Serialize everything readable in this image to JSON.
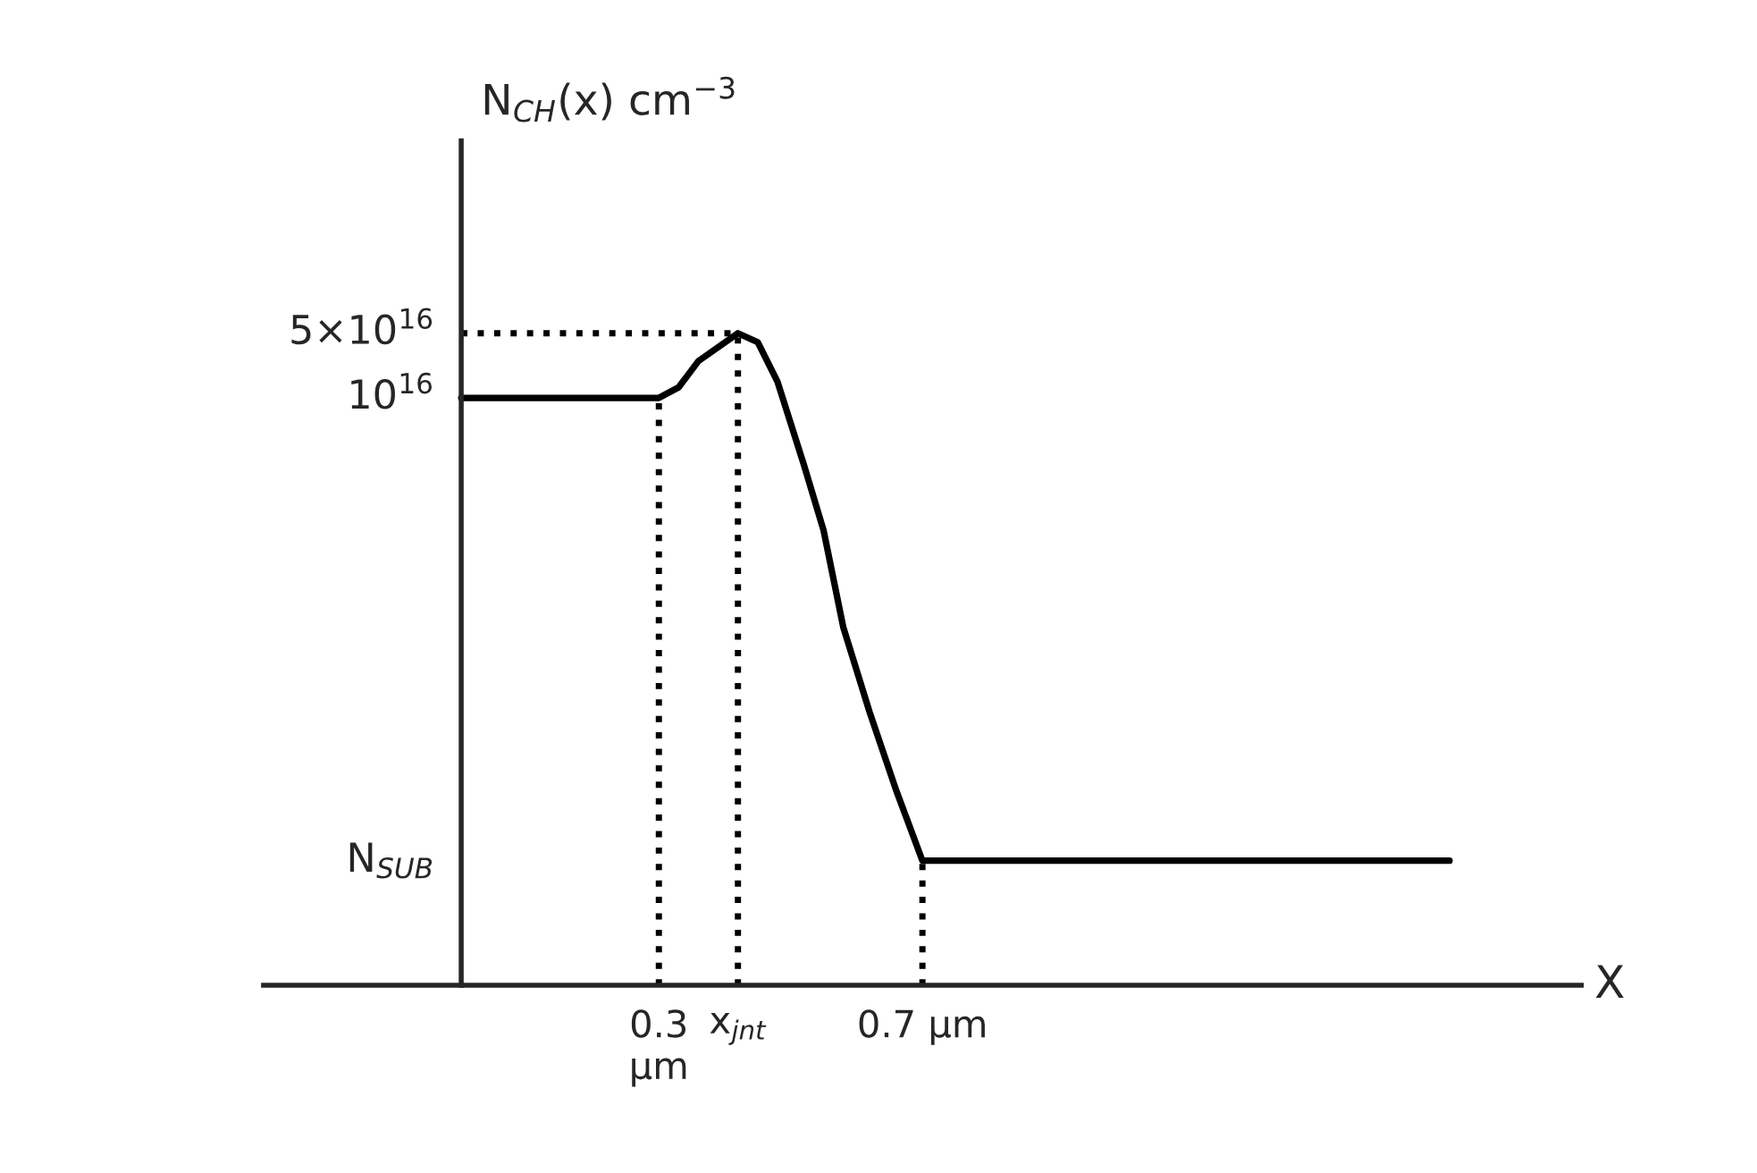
{
  "chart_data": {
    "type": "line",
    "log": true,
    "ylabel": "N$_{CH}$(x) cm$^{−3}$",
    "xlabel": "X",
    "x": [
      0,
      0.3,
      0.33,
      0.36,
      0.42,
      0.45,
      0.48,
      0.52,
      0.55,
      0.58,
      0.62,
      0.66,
      0.7,
      1.5
    ],
    "series": [
      {
        "color": "#000000",
        "values": [
          1e+16,
          1e+16,
          1.3e+16,
          2.5e+16,
          5e+16,
          4e+16,
          1.5e+16,
          1900000000000000.0,
          370000000000000.0,
          33000000000000.0,
          4000000000000.0,
          580000000000.0,
          100000000000.0,
          100000000000.0
        ]
      }
    ],
    "xlim": [
      -0.3,
      1.7
    ],
    "xticks": [
      {
        "value": 0.3,
        "label": "0.3\nμm"
      },
      {
        "value": 0.42,
        "label": "x$_{jnt}$"
      },
      {
        "value": 0.7,
        "label": "0.7 μm"
      }
    ],
    "ylim": [
      4500000000.0,
      6e+18
    ],
    "yticks": [
      {
        "value": 100000000000.0,
        "label": "N$_{SUB}$"
      },
      {
        "value": 1e+16,
        "label": "10$^{16}$"
      },
      {
        "value": 5e+16,
        "label": "5×10$^{16}$"
      }
    ],
    "ref_lines": [
      {
        "axis": "y",
        "value": 5e+16,
        "line_style": "dotted"
      },
      {
        "axis": "x",
        "value": 0.3,
        "line_style": "dotted"
      },
      {
        "axis": "x",
        "value": 0.42,
        "line_style": "dotted"
      },
      {
        "axis": "x",
        "value": 0.7,
        "line_style": "dotted"
      }
    ],
    "grid": false,
    "line_style": "solid",
    "marker": "none"
  }
}
